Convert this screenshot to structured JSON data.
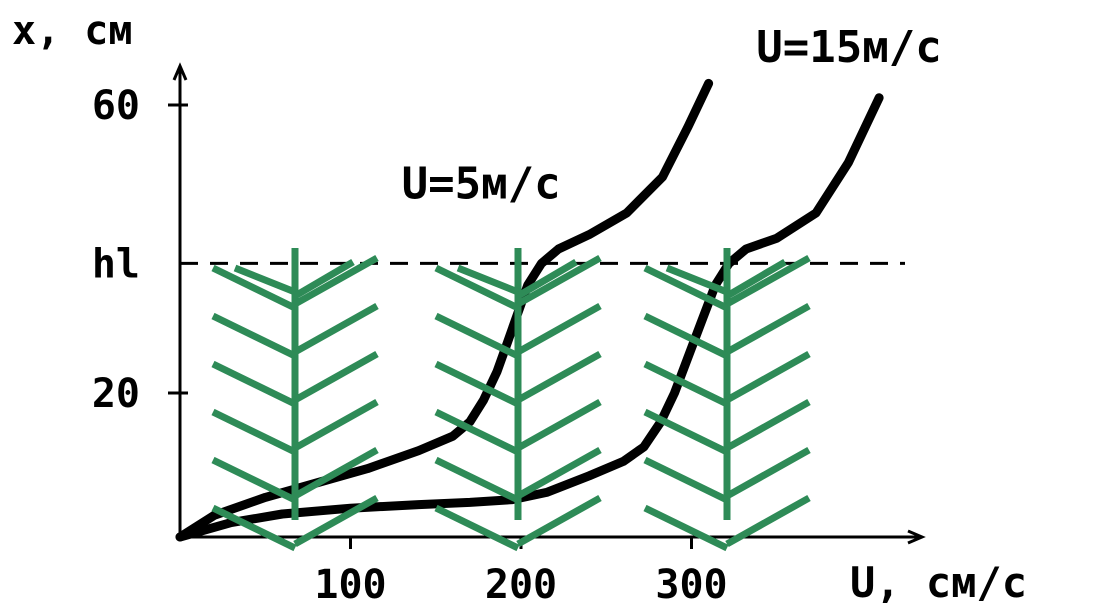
{
  "colors": {
    "axes": "#000000",
    "curves": "#000000",
    "plants": "#2e8b57",
    "background": "#ffffff"
  },
  "chart_data": {
    "type": "line",
    "title": "",
    "xlabel": "U, см/с",
    "ylabel": "x, см",
    "xlim": [
      0,
      430
    ],
    "ylim": [
      0,
      68
    ],
    "x_ticks": [
      100,
      200,
      300
    ],
    "y_ticks": [
      {
        "value": 20,
        "label": "20"
      },
      {
        "value": 60,
        "label": "60"
      }
    ],
    "grid": false,
    "reference_lines": [
      {
        "orientation": "horizontal",
        "y": 38,
        "label": "hl",
        "style": "dashed"
      }
    ],
    "series": [
      {
        "name": "U=5м/с",
        "x": [
          0,
          20,
          50,
          80,
          110,
          140,
          160,
          170,
          178,
          186,
          192,
          198,
          204,
          212,
          222,
          240,
          262,
          283,
          298,
          310
        ],
        "y": [
          0,
          3,
          5.5,
          7.5,
          9.5,
          12,
          14,
          16,
          19,
          23,
          27,
          31,
          35,
          38,
          40,
          42,
          45,
          50,
          57,
          63
        ]
      },
      {
        "name": "U=15м/с",
        "x": [
          0,
          30,
          60,
          100,
          140,
          170,
          195,
          215,
          240,
          260,
          272,
          282,
          290,
          298,
          306,
          314,
          322,
          332,
          350,
          373,
          392,
          410
        ],
        "y": [
          0,
          2,
          3.2,
          4,
          4.5,
          4.8,
          5.2,
          6.2,
          8.5,
          10.5,
          12.5,
          16,
          20,
          25,
          30,
          35,
          38,
          40,
          41.5,
          45,
          52,
          61
        ]
      }
    ],
    "annotations": [
      {
        "text": "U=5м/с",
        "x": 130,
        "y": 47
      },
      {
        "text": "U=15м/с",
        "x": 338,
        "y": 66
      }
    ],
    "legend": "none"
  }
}
